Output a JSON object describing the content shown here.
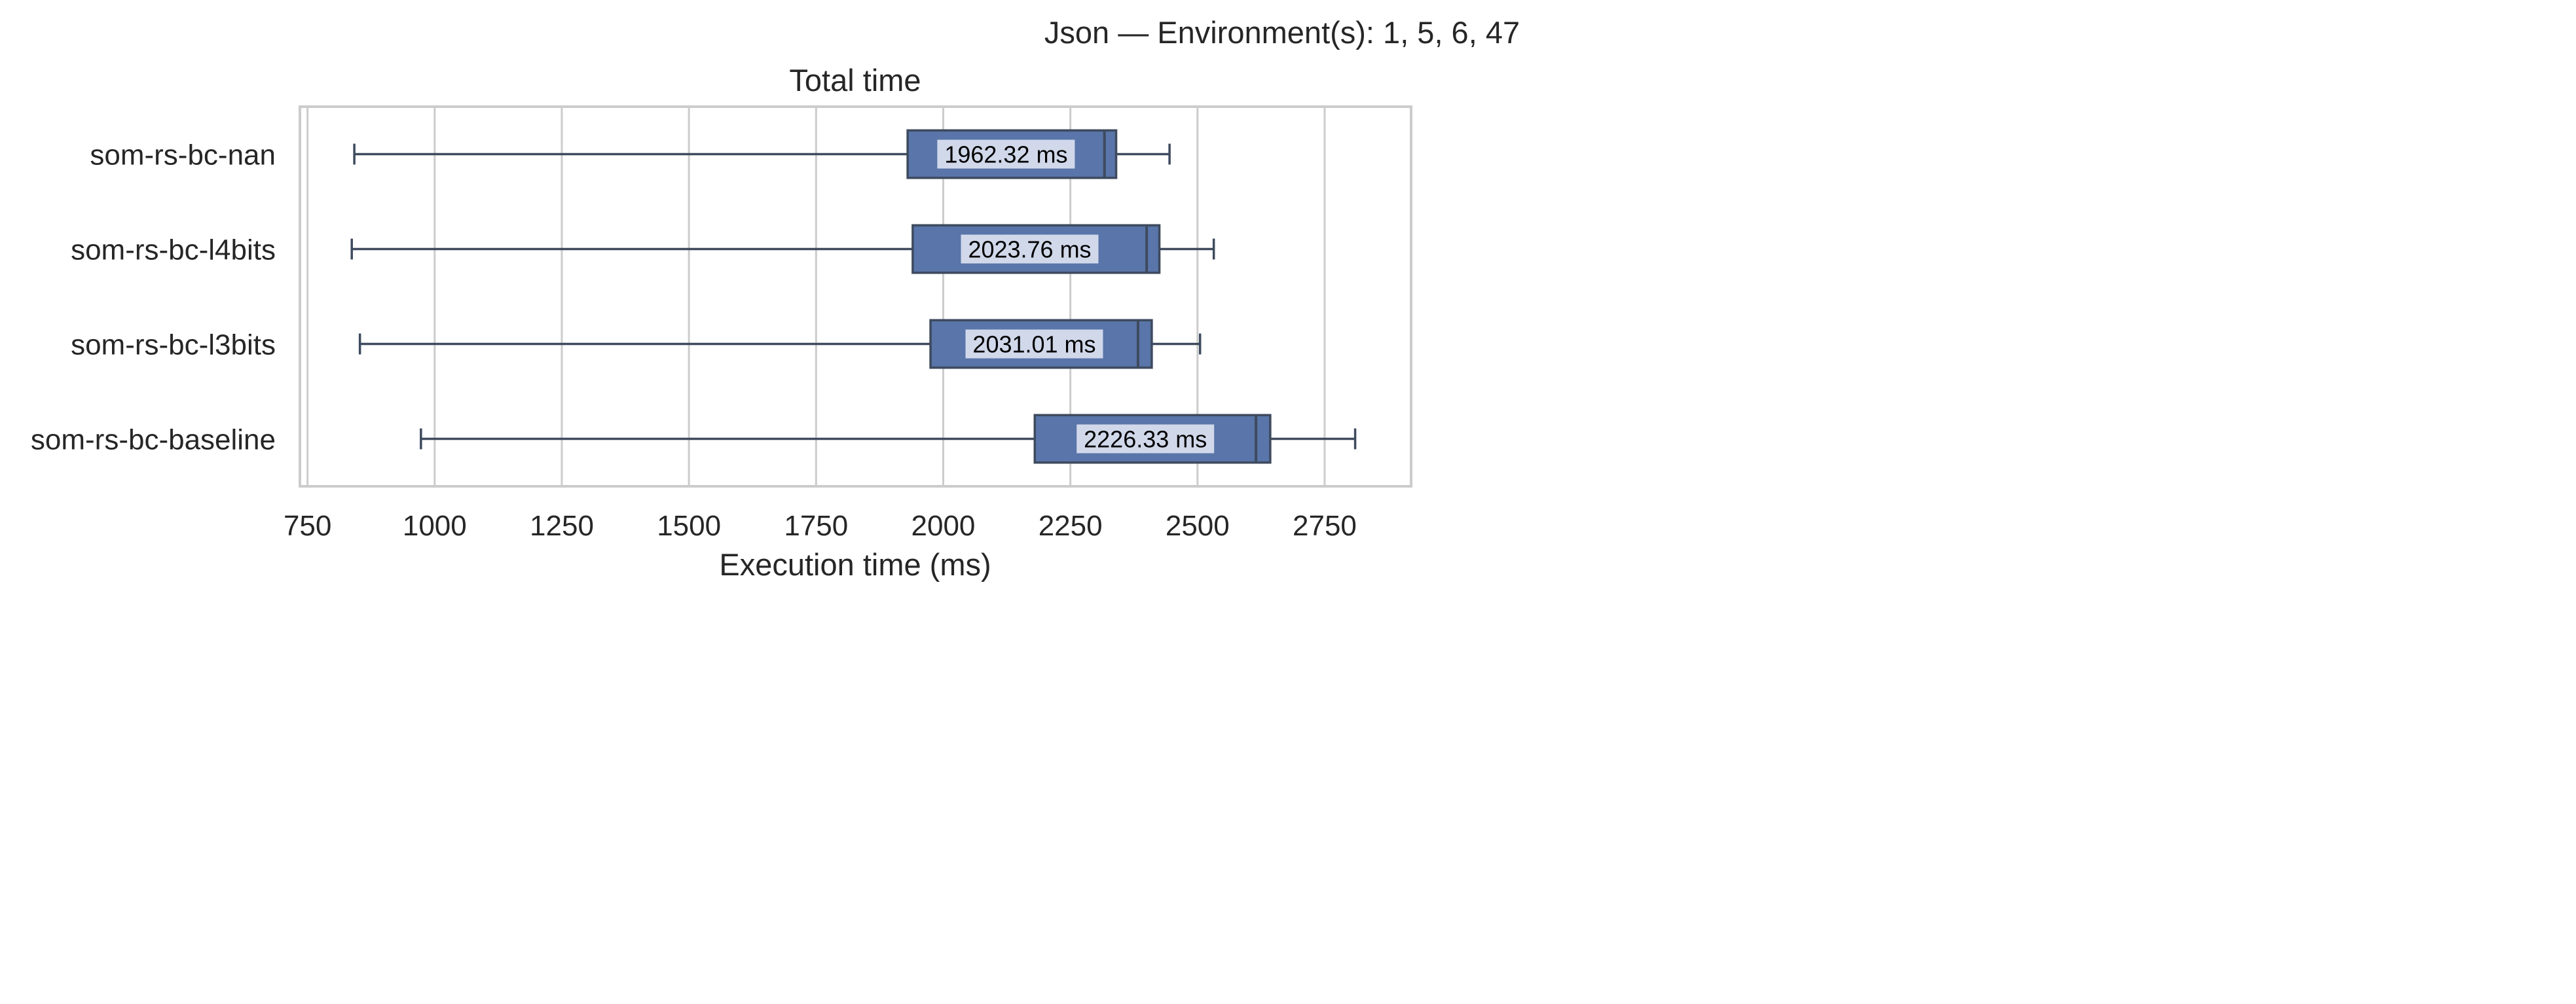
{
  "figure": {
    "suptitle": "Json — Environment(s): 1, 5, 6, 47"
  },
  "chart_data": {
    "type": "boxplot",
    "orientation": "horizontal",
    "title": "Total time",
    "xlabel": "Execution time (ms)",
    "ylabel": "",
    "xlim": [
      735,
      2920
    ],
    "xticks": [
      750,
      1000,
      1250,
      1500,
      1750,
      2000,
      2250,
      2500,
      2750
    ],
    "grid": "vertical",
    "box_color": "#5975a9",
    "edge_color": "#3e4a5e",
    "label_box_color": "#d0d8ea",
    "categories": [
      "som-rs-bc-nan",
      "som-rs-bc-l4bits",
      "som-rs-bc-l3bits",
      "som-rs-bc-baseline"
    ],
    "series": [
      {
        "category": "som-rs-bc-nan",
        "whisker_low": 842,
        "q1": 1930,
        "median": 2317,
        "q3": 2340,
        "whisker_high": 2445,
        "mean_label": "1962.32 ms"
      },
      {
        "category": "som-rs-bc-l4bits",
        "whisker_low": 837,
        "q1": 1940,
        "median": 2400,
        "q3": 2425,
        "whisker_high": 2532,
        "mean_label": "2023.76 ms"
      },
      {
        "category": "som-rs-bc-l3bits",
        "whisker_low": 853,
        "q1": 1975,
        "median": 2383,
        "q3": 2410,
        "whisker_high": 2505,
        "mean_label": "2031.01 ms"
      },
      {
        "category": "som-rs-bc-baseline",
        "whisker_low": 973,
        "q1": 2180,
        "median": 2615,
        "q3": 2643,
        "whisker_high": 2810,
        "mean_label": "2226.33 ms"
      }
    ]
  }
}
